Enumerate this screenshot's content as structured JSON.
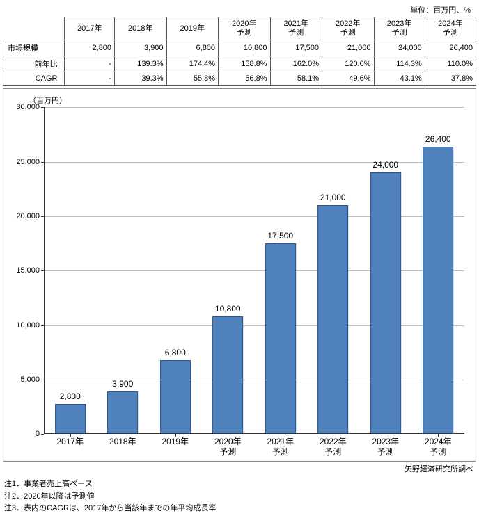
{
  "unit_label": "単位：百万円、%",
  "table": {
    "col_headers": [
      "2017年",
      "2018年",
      "2019年",
      "2020年\n予測",
      "2021年\n予測",
      "2022年\n予測",
      "2023年\n予測",
      "2024年\n予測"
    ],
    "row_labels": [
      "市場規模",
      "前年比",
      "CAGR"
    ],
    "rows": [
      [
        "2,800",
        "3,900",
        "6,800",
        "10,800",
        "17,500",
        "21,000",
        "24,000",
        "26,400"
      ],
      [
        "-",
        "139.3%",
        "174.4%",
        "158.8%",
        "162.0%",
        "120.0%",
        "114.3%",
        "110.0%"
      ],
      [
        "-",
        "39.3%",
        "55.8%",
        "56.8%",
        "58.1%",
        "49.6%",
        "43.1%",
        "37.8%"
      ]
    ]
  },
  "chart": {
    "type": "bar",
    "ylabel": "（百万円）",
    "categories": [
      "2017年",
      "2018年",
      "2019年",
      "2020年\n予測",
      "2021年\n予測",
      "2022年\n予測",
      "2023年\n予測",
      "2024年\n予測"
    ],
    "values": [
      2800,
      3900,
      6800,
      10800,
      17500,
      21000,
      24000,
      26400
    ],
    "value_labels": [
      "2,800",
      "3,900",
      "6,800",
      "10,800",
      "17,500",
      "21,000",
      "24,000",
      "26,400"
    ],
    "bar_fill": "#4f81bd",
    "bar_border": "#2f528f",
    "ylim": [
      0,
      30000
    ],
    "ytick_step": 5000,
    "ytick_labels": [
      "0",
      "5,000",
      "10,000",
      "15,000",
      "20,000",
      "25,000",
      "30,000"
    ],
    "grid_color": "#bfbfbf",
    "background_color": "#ffffff",
    "label_fontsize": 12,
    "tick_fontsize": 11
  },
  "source": "矢野経済研究所調べ",
  "notes": [
    "注1．事業者売上高ベース",
    "注2．2020年以降は予測値",
    "注3．表内のCAGRは、2017年から当該年までの年平均成長率"
  ]
}
